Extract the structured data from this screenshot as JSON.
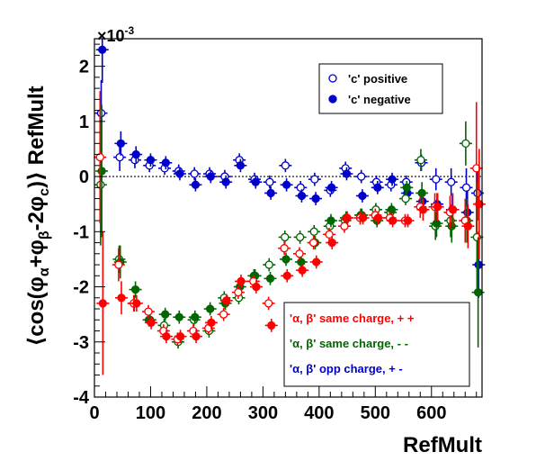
{
  "chart_data": {
    "type": "scatter",
    "title": "",
    "xlabel": "RefMult",
    "ylabel_parts": [
      "⟨cos(φ",
      "α",
      "+φ",
      "β",
      "-2φ",
      "c",
      ")⟩ RefMult"
    ],
    "y_exponent_base": "×10",
    "y_exponent_power": "-3",
    "xlim": [
      0,
      690
    ],
    "ylim": [
      -4,
      2.5
    ],
    "x_ticks": [
      0,
      100,
      200,
      300,
      400,
      500,
      600
    ],
    "x_tick_labels": [
      "0",
      "100",
      "200",
      "300",
      "400",
      "500",
      "600"
    ],
    "y_ticks": [
      -4,
      -3,
      -2,
      -1,
      0,
      1,
      2
    ],
    "y_tick_labels": [
      "-4",
      "-3",
      "-2",
      "-1",
      "0",
      "1",
      "2"
    ],
    "zero_line": true,
    "legends": [
      {
        "placement": "top-right",
        "entries": [
          {
            "label": "'c' positive",
            "marker": "open-circle",
            "color": "#0000cc"
          },
          {
            "label": "'c' negative",
            "marker": "filled-circle",
            "color": "#0000cc"
          }
        ]
      },
      {
        "placement": "bottom-right",
        "entries": [
          {
            "label": "'α, β'  same charge, + +",
            "color": "#ff0000"
          },
          {
            "label": "'α, β'  same charge, - -",
            "color": "#006600"
          },
          {
            "label": "'α, β'  opp charge, + -",
            "color": "#0000cc"
          }
        ]
      }
    ],
    "series": [
      {
        "color": "#0000cc",
        "marker": "open",
        "x": [
          12,
          45,
          72,
          98,
          125,
          150,
          178,
          205,
          232,
          258,
          285,
          312,
          340,
          367,
          392,
          420,
          447,
          475,
          502,
          528,
          555,
          582,
          608,
          635,
          662,
          682
        ],
        "y": [
          1.15,
          0.35,
          0.3,
          0.2,
          0.15,
          0.1,
          0.05,
          0.05,
          0.0,
          0.3,
          -0.05,
          -0.1,
          0.2,
          -0.2,
          -0.05,
          -0.25,
          0.15,
          0.0,
          -0.1,
          -0.15,
          -0.1,
          0.25,
          -0.05,
          -0.1,
          -0.2,
          -0.3
        ],
        "err": [
          0.6,
          0.25,
          0.15,
          0.12,
          0.12,
          0.12,
          0.12,
          0.12,
          0.12,
          0.12,
          0.12,
          0.12,
          0.12,
          0.12,
          0.12,
          0.12,
          0.12,
          0.12,
          0.12,
          0.12,
          0.12,
          0.15,
          0.2,
          0.25,
          0.35,
          0.5
        ]
      },
      {
        "color": "#0000cc",
        "marker": "filled",
        "x": [
          14,
          47,
          74,
          100,
          127,
          152,
          180,
          207,
          234,
          260,
          287,
          314,
          342,
          369,
          394,
          422,
          449,
          477,
          504,
          530,
          557,
          584,
          610,
          637,
          664,
          684
        ],
        "y": [
          2.3,
          0.6,
          0.4,
          0.3,
          0.25,
          0.05,
          -0.15,
          0.0,
          -0.1,
          0.2,
          -0.1,
          -0.3,
          -0.15,
          -0.35,
          -0.4,
          -0.2,
          0.05,
          -0.35,
          -0.2,
          -0.05,
          -0.3,
          -0.45,
          -0.5,
          -0.6,
          -0.65,
          -1.6
        ],
        "err": [
          0.6,
          0.22,
          0.15,
          0.12,
          0.12,
          0.12,
          0.12,
          0.12,
          0.12,
          0.12,
          0.12,
          0.12,
          0.12,
          0.12,
          0.12,
          0.12,
          0.12,
          0.12,
          0.12,
          0.12,
          0.12,
          0.15,
          0.2,
          0.25,
          0.4,
          0.6
        ]
      },
      {
        "color": "#006600",
        "marker": "open",
        "x": [
          11,
          44,
          71,
          97,
          124,
          149,
          177,
          204,
          231,
          257,
          284,
          311,
          339,
          366,
          391,
          419,
          446,
          474,
          501,
          527,
          554,
          581,
          607,
          634,
          661,
          681
        ],
        "y": [
          -0.15,
          -1.5,
          -2.3,
          -2.6,
          -2.7,
          -3.0,
          -2.6,
          -2.8,
          -2.2,
          -2.2,
          -1.8,
          -1.6,
          -1.1,
          -1.1,
          -1.0,
          -0.9,
          -0.8,
          -0.7,
          -0.6,
          -0.65,
          -0.4,
          0.3,
          -0.9,
          -0.8,
          0.6,
          -1.1
        ],
        "err": [
          1.1,
          0.25,
          0.15,
          0.12,
          0.12,
          0.12,
          0.12,
          0.12,
          0.12,
          0.12,
          0.12,
          0.12,
          0.12,
          0.12,
          0.12,
          0.12,
          0.12,
          0.12,
          0.12,
          0.12,
          0.12,
          0.2,
          0.25,
          0.3,
          0.4,
          1.0
        ]
      },
      {
        "color": "#006600",
        "marker": "filled",
        "x": [
          13,
          46,
          73,
          99,
          126,
          151,
          179,
          206,
          233,
          259,
          286,
          313,
          341,
          368,
          393,
          421,
          448,
          476,
          503,
          529,
          556,
          583,
          609,
          636,
          663,
          683
        ],
        "y": [
          0.1,
          -1.55,
          -2.05,
          -2.6,
          -2.5,
          -2.55,
          -2.55,
          -2.4,
          -2.3,
          -2.0,
          -1.8,
          -1.85,
          -1.5,
          -1.55,
          -1.2,
          -0.8,
          -0.75,
          -0.7,
          -0.8,
          -0.6,
          -0.2,
          -0.3,
          -0.85,
          -0.9,
          -0.8,
          -2.1
        ],
        "err": [
          1.2,
          0.3,
          0.15,
          0.12,
          0.12,
          0.12,
          0.12,
          0.12,
          0.12,
          0.12,
          0.12,
          0.12,
          0.12,
          0.12,
          0.12,
          0.12,
          0.12,
          0.12,
          0.12,
          0.12,
          0.12,
          0.2,
          0.25,
          0.3,
          0.4,
          1.0
        ]
      },
      {
        "color": "#ff0000",
        "marker": "open",
        "x": [
          10,
          43,
          70,
          96,
          123,
          148,
          176,
          203,
          230,
          256,
          283,
          310,
          338,
          365,
          390,
          418,
          445,
          473,
          500,
          526,
          553,
          580,
          606,
          633,
          660,
          680
        ],
        "y": [
          0.35,
          -1.6,
          -2.3,
          -2.45,
          -2.8,
          -2.95,
          -2.8,
          -2.75,
          -2.5,
          -2.1,
          -1.9,
          -2.3,
          -1.3,
          -1.4,
          -1.2,
          -1.05,
          -0.9,
          -0.75,
          -0.7,
          -0.75,
          -0.8,
          -0.55,
          -0.55,
          -0.65,
          -0.8,
          0.15
        ],
        "err": [
          1.2,
          0.3,
          0.15,
          0.12,
          0.12,
          0.12,
          0.12,
          0.12,
          0.12,
          0.12,
          0.12,
          0.12,
          0.12,
          0.12,
          0.12,
          0.12,
          0.12,
          0.12,
          0.12,
          0.12,
          0.12,
          0.2,
          0.25,
          0.3,
          0.4,
          1.2
        ]
      },
      {
        "color": "#ff0000",
        "marker": "filled",
        "x": [
          15,
          48,
          75,
          101,
          128,
          153,
          181,
          208,
          235,
          261,
          288,
          315,
          343,
          370,
          395,
          423,
          450,
          478,
          505,
          531,
          558,
          585,
          611,
          638,
          665,
          685
        ],
        "y": [
          -2.3,
          -2.2,
          -2.3,
          -2.65,
          -2.9,
          -2.9,
          -2.9,
          -2.65,
          -2.25,
          -1.9,
          -2.0,
          -2.7,
          -1.8,
          -1.7,
          -1.55,
          -1.2,
          -0.75,
          -0.75,
          -0.75,
          -0.8,
          -0.8,
          -0.6,
          -0.55,
          -0.6,
          -0.9,
          -0.5
        ],
        "err": [
          1.3,
          0.3,
          0.15,
          0.12,
          0.12,
          0.12,
          0.12,
          0.12,
          0.12,
          0.12,
          0.12,
          0.12,
          0.12,
          0.12,
          0.12,
          0.12,
          0.12,
          0.12,
          0.12,
          0.12,
          0.12,
          0.2,
          0.25,
          0.3,
          0.4,
          1.0
        ]
      }
    ]
  }
}
